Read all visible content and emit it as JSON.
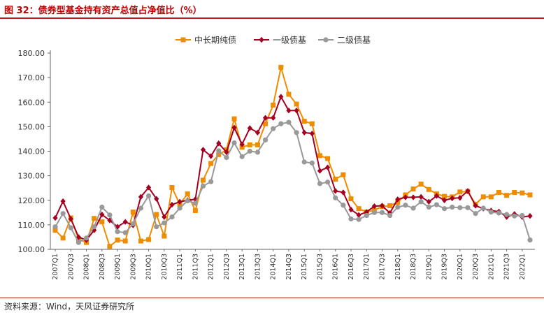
{
  "title": "图 32：债券型基金持有资产总值占净值比（%）",
  "source": "资料来源：Wind，天风证券研究所",
  "chart_data": {
    "type": "line",
    "title": "图 32：债券型基金持有资产总值占净值比（%）",
    "xlabel": "",
    "ylabel": "",
    "ylim": [
      100,
      180
    ],
    "yticks": [
      100,
      110,
      120,
      130,
      140,
      150,
      160,
      170,
      180
    ],
    "ytick_labels": [
      "100.00",
      "110.00",
      "120.00",
      "130.00",
      "140.00",
      "150.00",
      "160.00",
      "170.00",
      "180.00"
    ],
    "x": [
      "2007Q1",
      "2007Q2",
      "2007Q3",
      "2007Q4",
      "2008Q1",
      "2008Q2",
      "2008Q3",
      "2008Q4",
      "2009Q1",
      "2009Q2",
      "2009Q3",
      "2009Q4",
      "2010Q1",
      "2010Q2",
      "2010Q3",
      "2010Q4",
      "2011Q1",
      "2011Q2",
      "2011Q3",
      "2011Q4",
      "2012Q1",
      "2012Q2",
      "2012Q3",
      "2012Q4",
      "2013Q1",
      "2013Q2",
      "2013Q3",
      "2013Q4",
      "2014Q1",
      "2014Q2",
      "2014Q3",
      "2014Q4",
      "2015Q1",
      "2015Q2",
      "2015Q3",
      "2015Q4",
      "2016Q1",
      "2016Q2",
      "2016Q3",
      "2016Q4",
      "2017Q1",
      "2017Q2",
      "2017Q3",
      "2017Q4",
      "2018Q1",
      "2018Q2",
      "2018Q3",
      "2018Q4",
      "2019Q1",
      "2019Q2",
      "2019Q3",
      "2019Q4",
      "2020Q1",
      "2020Q2",
      "2020Q3",
      "2020Q4",
      "2021Q1",
      "2021Q2",
      "2021Q3",
      "2021Q4",
      "2022Q1",
      "2022Q2"
    ],
    "x_tick_labels": [
      "2007Q1",
      "2007Q3",
      "2008Q1",
      "2008Q3",
      "2009Q1",
      "2009Q3",
      "2010Q1",
      "2010Q3",
      "2011Q1",
      "2011Q3",
      "2012Q1",
      "2012Q3",
      "2013Q1",
      "2013Q3",
      "2014Q1",
      "2014Q3",
      "2015Q1",
      "2015Q3",
      "2016Q1",
      "2016Q3",
      "2017Q1",
      "2017Q3",
      "2018Q1",
      "2018Q3",
      "2019Q1",
      "2019Q3",
      "2020Q1",
      "2020Q3",
      "2021Q1",
      "2021Q3",
      "2022Q1"
    ],
    "legend_position": "top-center",
    "series": [
      {
        "name": "中长期纯债",
        "color": "#f08c00",
        "marker": "square",
        "values": [
          107.8,
          104.6,
          112.8,
          104.2,
          102.8,
          112.6,
          111.2,
          101.2,
          103.8,
          103.4,
          115.2,
          103.4,
          104.0,
          114.2,
          105.4,
          125.2,
          118.4,
          122.6,
          115.8,
          128.2,
          135.0,
          138.6,
          140.6,
          153.2,
          141.6,
          142.6,
          142.6,
          151.2,
          158.8,
          174.2,
          163.2,
          159.2,
          152.2,
          151.2,
          138.2,
          137.0,
          128.6,
          130.4,
          120.6,
          116.6,
          115.2,
          116.0,
          117.4,
          117.8,
          119.2,
          122.2,
          124.6,
          126.6,
          124.4,
          122.6,
          121.6,
          121.4,
          123.4,
          123.6,
          118.4,
          121.4,
          121.4,
          123.2,
          122.0,
          123.2,
          123.0,
          122.2
        ]
      },
      {
        "name": "一级债基",
        "color": "#a50021",
        "marker": "diamond",
        "values": [
          112.8,
          119.6,
          112.4,
          105.0,
          103.8,
          107.8,
          114.2,
          111.8,
          109.2,
          111.2,
          109.8,
          121.4,
          125.2,
          120.6,
          113.2,
          118.2,
          119.4,
          120.0,
          120.4,
          140.6,
          138.0,
          143.2,
          139.6,
          149.6,
          142.8,
          149.4,
          147.6,
          153.6,
          153.6,
          162.2,
          156.6,
          156.6,
          147.6,
          147.2,
          132.0,
          133.4,
          123.8,
          123.2,
          116.2,
          114.0,
          115.2,
          117.6,
          117.8,
          114.8,
          120.4,
          121.2,
          121.2,
          121.4,
          119.4,
          121.8,
          120.0,
          120.8,
          121.0,
          123.8,
          117.8,
          116.6,
          115.8,
          115.4,
          113.2,
          114.4,
          113.2,
          113.6
        ]
      },
      {
        "name": "二级债基",
        "color": "#999999",
        "marker": "circle",
        "values": [
          109.2,
          114.6,
          108.8,
          102.8,
          104.6,
          109.2,
          117.2,
          114.0,
          107.2,
          106.8,
          110.4,
          116.8,
          121.8,
          109.2,
          110.8,
          113.2,
          116.8,
          119.8,
          118.8,
          125.8,
          127.6,
          140.2,
          137.4,
          143.4,
          137.8,
          140.0,
          139.6,
          144.6,
          149.2,
          151.2,
          151.8,
          147.6,
          135.6,
          135.2,
          126.8,
          127.4,
          121.0,
          118.0,
          112.4,
          112.2,
          113.8,
          115.0,
          115.0,
          113.8,
          117.2,
          118.0,
          116.8,
          119.4,
          117.2,
          118.2,
          116.6,
          117.2,
          117.0,
          117.0,
          114.6,
          116.8,
          115.2,
          114.8,
          114.2,
          113.6,
          113.8,
          103.8
        ]
      }
    ]
  }
}
